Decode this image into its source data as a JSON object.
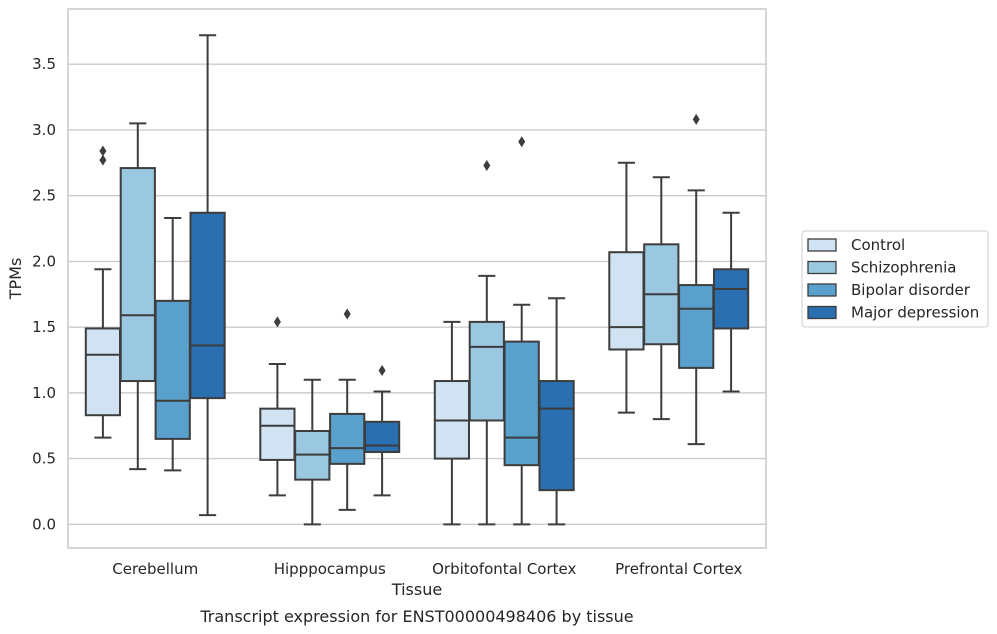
{
  "chart_data": {
    "type": "box",
    "title": "",
    "xlabel": "Tissue",
    "ylabel": "TPMs",
    "caption": "Transcript expression for ENST00000498406 by tissue",
    "ylim": [
      -0.18,
      3.92
    ],
    "yticks": [
      0.0,
      0.5,
      1.0,
      1.5,
      2.0,
      2.5,
      3.0,
      3.5
    ],
    "ytick_labels": [
      "0.0",
      "0.5",
      "1.0",
      "1.5",
      "2.0",
      "2.5",
      "3.0",
      "3.5"
    ],
    "grid": "horizontal",
    "legend_position": "right",
    "categories": [
      "Cerebellum",
      "Hipppocampus",
      "Orbitofontal Cortex",
      "Prefrontal Cortex"
    ],
    "series": [
      {
        "name": "Control",
        "color": "#d1e2f2",
        "boxes": [
          {
            "whislo": 0.66,
            "q1": 0.83,
            "med": 1.29,
            "q3": 1.49,
            "whishi": 1.94,
            "fliers": [
              2.77,
              2.84
            ]
          },
          {
            "whislo": 0.22,
            "q1": 0.49,
            "med": 0.75,
            "q3": 0.88,
            "whishi": 1.22,
            "fliers": [
              1.54
            ]
          },
          {
            "whislo": 0.0,
            "q1": 0.5,
            "med": 0.79,
            "q3": 1.09,
            "whishi": 1.54,
            "fliers": []
          },
          {
            "whislo": 0.85,
            "q1": 1.33,
            "med": 1.5,
            "q3": 2.07,
            "whishi": 2.75,
            "fliers": []
          }
        ]
      },
      {
        "name": "Schizophrenia",
        "color": "#9ac8e0",
        "boxes": [
          {
            "whislo": 0.42,
            "q1": 1.09,
            "med": 1.59,
            "q3": 2.71,
            "whishi": 3.05,
            "fliers": []
          },
          {
            "whislo": 0.0,
            "q1": 0.34,
            "med": 0.53,
            "q3": 0.71,
            "whishi": 1.1,
            "fliers": []
          },
          {
            "whislo": 0.0,
            "q1": 0.79,
            "med": 1.35,
            "q3": 1.54,
            "whishi": 1.89,
            "fliers": [
              2.73
            ]
          },
          {
            "whislo": 0.8,
            "q1": 1.37,
            "med": 1.75,
            "q3": 2.13,
            "whishi": 2.64,
            "fliers": []
          }
        ]
      },
      {
        "name": "Bipolar disorder",
        "color": "#5aa0cd",
        "boxes": [
          {
            "whislo": 0.41,
            "q1": 0.65,
            "med": 0.94,
            "q3": 1.7,
            "whishi": 2.33,
            "fliers": []
          },
          {
            "whislo": 0.11,
            "q1": 0.46,
            "med": 0.58,
            "q3": 0.84,
            "whishi": 1.1,
            "fliers": [
              1.6
            ]
          },
          {
            "whislo": 0.0,
            "q1": 0.45,
            "med": 0.66,
            "q3": 1.39,
            "whishi": 1.67,
            "fliers": [
              2.91
            ]
          },
          {
            "whislo": 0.61,
            "q1": 1.19,
            "med": 1.64,
            "q3": 1.82,
            "whishi": 2.54,
            "fliers": [
              3.08
            ]
          }
        ]
      },
      {
        "name": "Major depression",
        "color": "#2a6fb0",
        "boxes": [
          {
            "whislo": 0.07,
            "q1": 0.96,
            "med": 1.36,
            "q3": 2.37,
            "whishi": 3.72,
            "fliers": []
          },
          {
            "whislo": 0.22,
            "q1": 0.55,
            "med": 0.6,
            "q3": 0.78,
            "whishi": 1.01,
            "fliers": [
              1.17
            ]
          },
          {
            "whislo": 0.0,
            "q1": 0.26,
            "med": 0.88,
            "q3": 1.09,
            "whishi": 1.72,
            "fliers": []
          },
          {
            "whislo": 1.01,
            "q1": 1.49,
            "med": 1.79,
            "q3": 1.94,
            "whishi": 2.37,
            "fliers": []
          }
        ]
      }
    ]
  }
}
